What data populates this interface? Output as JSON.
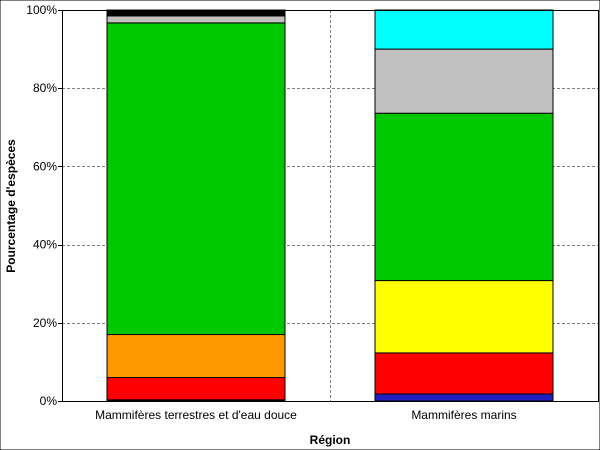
{
  "chart_data": {
    "type": "bar",
    "stacked": true,
    "percent": true,
    "xlabel": "Région",
    "ylabel": "Pourcentage d'espèces",
    "categories": [
      "Mammifères terrestres et d'eau douce",
      "Mammifères marins"
    ],
    "ylim": [
      0,
      100
    ],
    "yticks": [
      "0%",
      "20%",
      "40%",
      "60%",
      "80%",
      "100%"
    ],
    "grid": true,
    "legend": "none",
    "series": [
      {
        "color": "#2020c0",
        "values": [
          0.3,
          1.8
        ]
      },
      {
        "color": "#ff0000",
        "values": [
          5.7,
          10.5
        ]
      },
      {
        "color": "#ffff00",
        "values": [
          0.0,
          18.5
        ]
      },
      {
        "color": "#ff9900",
        "values": [
          11.0,
          0.0
        ]
      },
      {
        "color": "#00c800",
        "values": [
          79.7,
          42.8
        ]
      },
      {
        "color": "#c0c0c0",
        "values": [
          1.8,
          16.4
        ]
      },
      {
        "color": "#00ffff",
        "values": [
          0.0,
          10.0
        ]
      },
      {
        "color": "#000000",
        "values": [
          1.5,
          0.0
        ]
      }
    ]
  }
}
